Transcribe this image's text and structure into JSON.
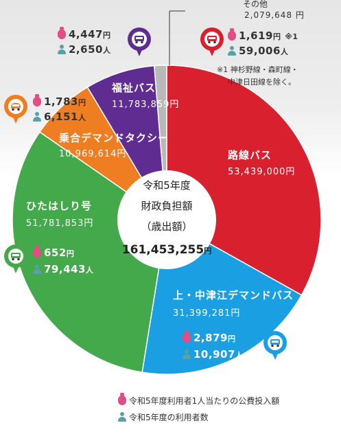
{
  "chart_data": {
    "type": "pie",
    "center": {
      "line1": "令和5年度",
      "line2": "財政負担額",
      "line3": "（歳出額）",
      "total": "161,453,255",
      "total_unit": "円"
    },
    "slices": [
      {
        "key": "rosen",
        "name": "路線バス",
        "amount": "53,439,000円",
        "value": 53439000,
        "color": "#d8202f"
      },
      {
        "key": "kami",
        "name": "上・中津江デマンドバス",
        "amount": "31,399,281円",
        "value": 31399281,
        "color": "#1aa0e2"
      },
      {
        "key": "hitahashiri",
        "name": "ひたはしり号",
        "amount": "51,781,853円",
        "value": 51781853,
        "color": "#43a94a"
      },
      {
        "key": "noriai",
        "name": "乗合デマンドタクシー",
        "amount": "10,969,614円",
        "value": 10969614,
        "color": "#ef7d22"
      },
      {
        "key": "fukushi",
        "name": "福祉バス",
        "amount": "11,783,859円",
        "value": 11783859,
        "color": "#5f2d91"
      },
      {
        "key": "other",
        "name": "その他",
        "amount": "2,079,648 円",
        "value": 2079648,
        "color": "#b9b9b9"
      }
    ],
    "stats": {
      "rosen": {
        "cost": "1,619",
        "cost_unit": "円",
        "users": "59,006",
        "users_unit": "人",
        "mark": "※1"
      },
      "kami": {
        "cost": "2,879",
        "cost_unit": "円",
        "users": "10,907",
        "users_unit": "人"
      },
      "hitahashiri": {
        "cost": "652",
        "cost_unit": "円",
        "users": "79,443",
        "users_unit": "人"
      },
      "noriai": {
        "cost": "1,783",
        "cost_unit": "円",
        "users": "6,151",
        "users_unit": "人"
      },
      "fukushi": {
        "cost": "4,447",
        "cost_unit": "円",
        "users": "2,650",
        "users_unit": "人"
      }
    },
    "note": [
      "※1 神杉野線・森町線・",
      "中津日田線を除く。"
    ],
    "legend": [
      {
        "icon": "money-bag-icon",
        "label": "令和5年度利用者1人当たりの公費投入額"
      },
      {
        "icon": "person-icon",
        "label": "令和5年度の利用者数"
      }
    ],
    "colors": {
      "cost_icon": "#e24d86",
      "users_icon": "#5aa0a8",
      "pin_rosen": "#d8202f",
      "pin_kami": "#1aa0e2",
      "pin_hitahashiri": "#43a94a",
      "pin_noriai": "#ef7d22",
      "pin_fukushi": "#5f2d91"
    }
  }
}
